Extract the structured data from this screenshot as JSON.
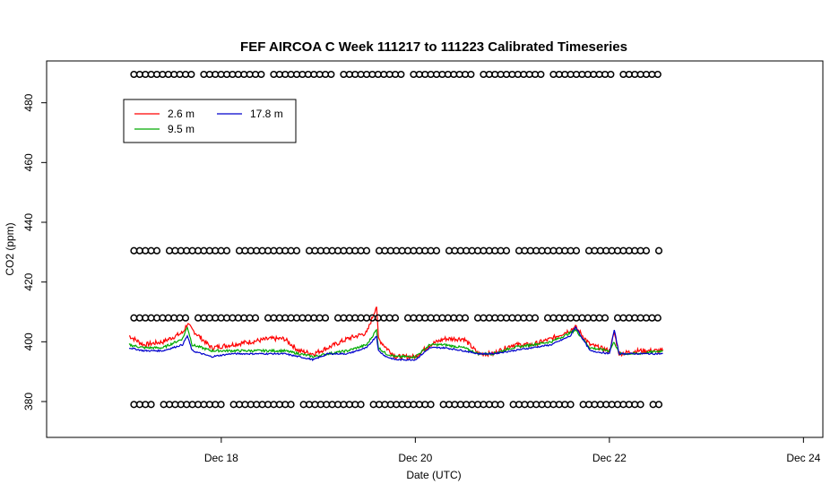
{
  "chart_data": {
    "type": "line",
    "title": "FEF AIRCOA C  Week 111217 to 111223  Calibrated Timeseries",
    "xlabel": "Date (UTC)",
    "ylabel": "CO2 (ppm)",
    "xlim_days": [
      16.2,
      24.2
    ],
    "ylim": [
      368,
      494
    ],
    "x_ticks": [
      {
        "value": 18,
        "label": "Dec 18"
      },
      {
        "value": 20,
        "label": "Dec 20"
      },
      {
        "value": 22,
        "label": "Dec 22"
      },
      {
        "value": 24,
        "label": "Dec 24"
      }
    ],
    "y_ticks": [
      {
        "value": 380,
        "label": "380"
      },
      {
        "value": 400,
        "label": "400"
      },
      {
        "value": 420,
        "label": "420"
      },
      {
        "value": 440,
        "label": "440"
      },
      {
        "value": 460,
        "label": "460"
      },
      {
        "value": 480,
        "label": "480"
      }
    ],
    "grid": false,
    "legend_position": "top-left",
    "legend": [
      {
        "name": "2.6 m",
        "color": "#ff0000"
      },
      {
        "name": "9.5 m",
        "color": "#00aa00"
      },
      {
        "name": "17.8 m",
        "color": "#0000cc"
      }
    ],
    "series": [
      {
        "name": "2.6 m",
        "color": "#ff0000",
        "x": [
          17.05,
          17.2,
          17.4,
          17.6,
          17.65,
          17.7,
          17.9,
          18.1,
          18.3,
          18.5,
          18.65,
          18.8,
          18.95,
          19.1,
          19.3,
          19.5,
          19.6,
          19.62,
          19.7,
          19.8,
          20.0,
          20.15,
          20.3,
          20.5,
          20.65,
          20.8,
          21.0,
          21.2,
          21.4,
          21.6,
          21.65,
          21.8,
          22.0,
          22.05,
          22.1,
          22.3,
          22.55
        ],
        "y": [
          402,
          399,
          400,
          403,
          406,
          404,
          398,
          399,
          400,
          401,
          401,
          397,
          396,
          398,
          401,
          403,
          412,
          401,
          398,
          395,
          395,
          399,
          401,
          401,
          396,
          396,
          399,
          399,
          401,
          404,
          405,
          399,
          397,
          403,
          396,
          397,
          397
        ]
      },
      {
        "name": "9.5 m",
        "color": "#00aa00",
        "x": [
          17.05,
          17.2,
          17.4,
          17.6,
          17.65,
          17.7,
          17.9,
          18.1,
          18.3,
          18.5,
          18.65,
          18.8,
          18.95,
          19.1,
          19.3,
          19.5,
          19.6,
          19.62,
          19.7,
          19.8,
          20.0,
          20.15,
          20.3,
          20.5,
          20.65,
          20.8,
          21.0,
          21.2,
          21.4,
          21.6,
          21.65,
          21.8,
          22.0,
          22.05,
          22.1,
          22.3,
          22.55
        ],
        "y": [
          399,
          398,
          398,
          401,
          405,
          399,
          397,
          397,
          397,
          397,
          397,
          396,
          395,
          396,
          397,
          399,
          404,
          398,
          396,
          395,
          395,
          399,
          399,
          398,
          396,
          396,
          398,
          399,
          400,
          403,
          404,
          398,
          397,
          400,
          396,
          396,
          397
        ]
      },
      {
        "name": "17.8 m",
        "color": "#0000cc",
        "x": [
          17.05,
          17.2,
          17.4,
          17.6,
          17.65,
          17.7,
          17.9,
          18.1,
          18.3,
          18.5,
          18.65,
          18.8,
          18.95,
          19.1,
          19.3,
          19.5,
          19.6,
          19.62,
          19.7,
          19.8,
          20.0,
          20.15,
          20.3,
          20.5,
          20.65,
          20.8,
          21.0,
          21.2,
          21.4,
          21.6,
          21.65,
          21.8,
          22.0,
          22.05,
          22.1,
          22.3,
          22.55
        ],
        "y": [
          398,
          397,
          397,
          399,
          402,
          397,
          395,
          396,
          396,
          396,
          396,
          395,
          394,
          396,
          396,
          398,
          402,
          397,
          395,
          394,
          394,
          398,
          398,
          397,
          396,
          396,
          397,
          398,
          399,
          402,
          405,
          397,
          396,
          404,
          396,
          396,
          396
        ]
      }
    ],
    "reference_rows": [
      {
        "y": 489.5,
        "x_start": 17.1,
        "x_end": 22.55,
        "marker": "o"
      },
      {
        "y": 430.5,
        "x_start": 17.1,
        "x_end": 22.55,
        "marker": "o"
      },
      {
        "y": 408,
        "x_start": 17.1,
        "x_end": 22.55,
        "marker": "o"
      },
      {
        "y": 379,
        "x_start": 17.1,
        "x_end": 22.55,
        "marker": "o"
      }
    ]
  }
}
